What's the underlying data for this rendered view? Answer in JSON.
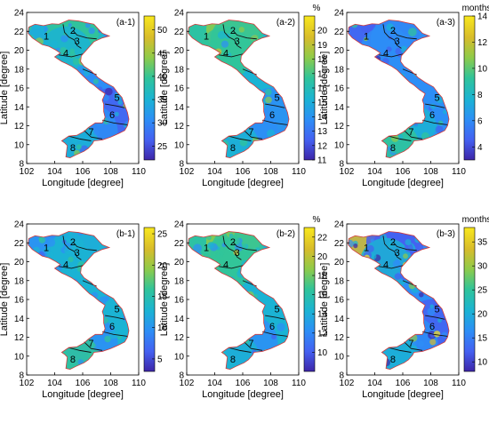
{
  "figure": {
    "axis_labels": {
      "x": "Longitude [degree]",
      "y": "Latitude [degree]"
    },
    "x_ticks": [
      "102",
      "104",
      "106",
      "108",
      "110"
    ],
    "y_ticks": [
      "8",
      "10",
      "12",
      "14",
      "16",
      "18",
      "20",
      "22",
      "24"
    ],
    "region_labels": [
      "1",
      "2",
      "3",
      "4",
      "5",
      "6",
      "7",
      "8"
    ],
    "colormap": [
      "#3e26a8",
      "#4561f1",
      "#2d8ef6",
      "#1bb3d4",
      "#30c49a",
      "#8ecb4a",
      "#d8bc2b",
      "#f9e81d"
    ],
    "panels": [
      {
        "id": "(a-1)",
        "unit": "",
        "cbar_ticks": [
          "25",
          "30",
          "35",
          "40",
          "45",
          "50"
        ],
        "cbar_range": [
          22,
          53
        ]
      },
      {
        "id": "(a-2)",
        "unit": "%",
        "cbar_ticks": [
          "11",
          "12",
          "13",
          "14",
          "15",
          "16",
          "17",
          "18",
          "19",
          "20"
        ],
        "cbar_range": [
          11,
          21
        ]
      },
      {
        "id": "(a-3)",
        "unit": "months",
        "cbar_ticks": [
          "4",
          "6",
          "8",
          "10",
          "12",
          "14"
        ],
        "cbar_range": [
          3,
          14
        ]
      },
      {
        "id": "(b-1)",
        "unit": "",
        "cbar_ticks": [
          "5",
          "10",
          "15",
          "20",
          "25"
        ],
        "cbar_range": [
          3,
          26
        ]
      },
      {
        "id": "(b-2)",
        "unit": "%",
        "cbar_ticks": [
          "10",
          "12",
          "14",
          "16",
          "18",
          "20",
          "22"
        ],
        "cbar_range": [
          8,
          23
        ]
      },
      {
        "id": "(b-3)",
        "unit": "months",
        "cbar_ticks": [
          "10",
          "15",
          "20",
          "25",
          "30",
          "35"
        ],
        "cbar_range": [
          8,
          38
        ]
      }
    ]
  }
}
